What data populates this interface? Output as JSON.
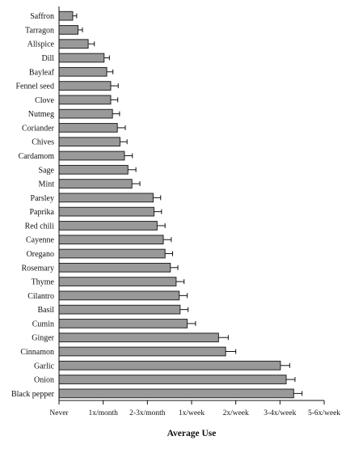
{
  "chart_data": {
    "type": "bar",
    "orientation": "horizontal",
    "title": "",
    "xlabel": "Average Use",
    "ylabel": "",
    "x_ticks": [
      "Never",
      "1x/month",
      "2-3x/month",
      "1x/week",
      "2x/week",
      "3-4x/week",
      "5-6x/week"
    ],
    "xlim": [
      0,
      6
    ],
    "grid": false,
    "legend": "none",
    "bar_color": "#999999",
    "bar_edge_color": "#222222",
    "categories": [
      "Saffron",
      "Tarragon",
      "Allspice",
      "Dill",
      "Bayleaf",
      "Fennel seed",
      "Clove",
      "Nutmeg",
      "Coriander",
      "Chives",
      "Cardamom",
      "Sage",
      "Mint",
      "Parsley",
      "Paprika",
      "Red chili",
      "Cayenne",
      "Oregano",
      "Rosemary",
      "Thyme",
      "Cilantro",
      "Basil",
      "Cumin",
      "Ginger",
      "Cinnamon",
      "Garlic",
      "Onion",
      "Black pepper"
    ],
    "values": [
      0.31,
      0.43,
      0.66,
      1.02,
      1.08,
      1.17,
      1.17,
      1.21,
      1.32,
      1.38,
      1.48,
      1.56,
      1.65,
      2.13,
      2.15,
      2.22,
      2.36,
      2.4,
      2.52,
      2.65,
      2.72,
      2.74,
      2.9,
      3.61,
      3.77,
      5.01,
      5.14,
      5.31
    ],
    "errors": [
      0.09,
      0.1,
      0.14,
      0.12,
      0.14,
      0.17,
      0.16,
      0.16,
      0.18,
      0.16,
      0.18,
      0.18,
      0.18,
      0.17,
      0.17,
      0.18,
      0.18,
      0.17,
      0.17,
      0.18,
      0.18,
      0.18,
      0.19,
      0.22,
      0.23,
      0.21,
      0.2,
      0.19
    ]
  }
}
